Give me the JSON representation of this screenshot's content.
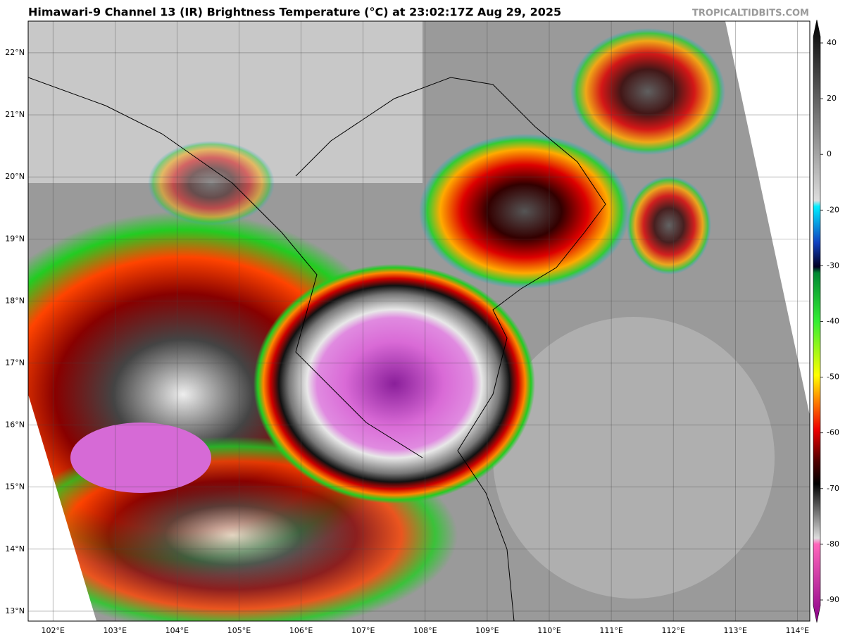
{
  "title": "Himawari-9 Channel 13 (IR) Brightness Temperature (°C) at 23:02:17Z Aug 29, 2025",
  "watermark": "TROPICALTIDBITS.COM",
  "map": {
    "lonlim": [
      101.6,
      114.2
    ],
    "latlim": [
      12.84,
      22.51
    ],
    "lat_ticks": [
      {
        "value": 22,
        "label": "22°N"
      },
      {
        "value": 21,
        "label": "21°N"
      },
      {
        "value": 20,
        "label": "20°N"
      },
      {
        "value": 19,
        "label": "19°N"
      },
      {
        "value": 18,
        "label": "18°N"
      },
      {
        "value": 17,
        "label": "17°N"
      },
      {
        "value": 16,
        "label": "16°N"
      },
      {
        "value": 15,
        "label": "15°N"
      },
      {
        "value": 14,
        "label": "14°N"
      },
      {
        "value": 13,
        "label": "13°N"
      }
    ],
    "lon_ticks": [
      {
        "value": 102,
        "label": "102°E"
      },
      {
        "value": 103,
        "label": "103°E"
      },
      {
        "value": 104,
        "label": "104°E"
      },
      {
        "value": 105,
        "label": "105°E"
      },
      {
        "value": 106,
        "label": "106°E"
      },
      {
        "value": 107,
        "label": "107°E"
      },
      {
        "value": 108,
        "label": "108°E"
      },
      {
        "value": 109,
        "label": "109°E"
      },
      {
        "value": 110,
        "label": "110°E"
      },
      {
        "value": 111,
        "label": "111°E"
      },
      {
        "value": 112,
        "label": "112°E"
      },
      {
        "value": 113,
        "label": "113°E"
      },
      {
        "value": 114,
        "label": "114°E"
      }
    ]
  },
  "colorbar": {
    "ticks": [
      40,
      20,
      0,
      -20,
      -30,
      -40,
      -50,
      -60,
      -70,
      -80,
      -90
    ]
  }
}
